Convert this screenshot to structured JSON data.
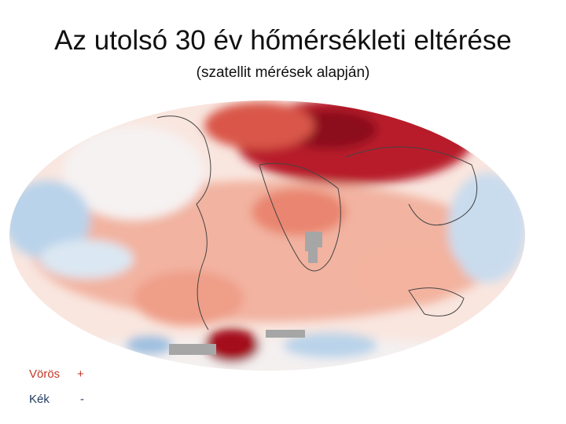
{
  "title": "Az utolsó 30 év hőmérsékleti eltérése",
  "subtitle": "(szatellit mérések alapján)",
  "legend": [
    {
      "label": "Vörös",
      "sign": "+"
    },
    {
      "label": "Kék",
      "sign": "-"
    }
  ]
}
